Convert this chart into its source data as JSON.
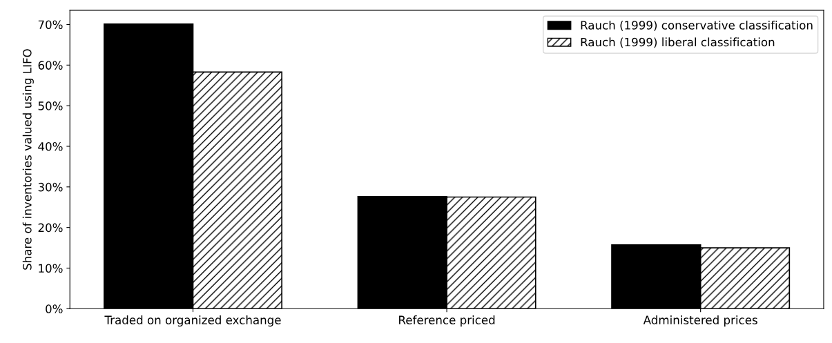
{
  "chart_data": {
    "type": "bar",
    "ylabel": "Share of inventories valued using LIFO",
    "categories": [
      "Traded on organized exchange",
      "Reference priced",
      "Administered prices"
    ],
    "series": [
      {
        "name": "Rauch (1999) conservative classification",
        "color": "#000000",
        "values": [
          70.1,
          27.6,
          15.7
        ]
      },
      {
        "name": "Rauch (1999) liberal classification",
        "color": "#000000",
        "values": [
          58.3,
          27.5,
          15.0
        ]
      }
    ],
    "ylim": [
      0,
      73.5
    ],
    "yticks": [
      {
        "value": 0,
        "label": "0%"
      },
      {
        "value": 10,
        "label": "10%"
      },
      {
        "value": 20,
        "label": "20%"
      },
      {
        "value": 30,
        "label": "30%"
      },
      {
        "value": 40,
        "label": "40%"
      },
      {
        "value": 50,
        "label": "50%"
      },
      {
        "value": 60,
        "label": "60%"
      },
      {
        "value": 70,
        "label": "70%"
      }
    ],
    "grid": false,
    "legend": "top right"
  }
}
